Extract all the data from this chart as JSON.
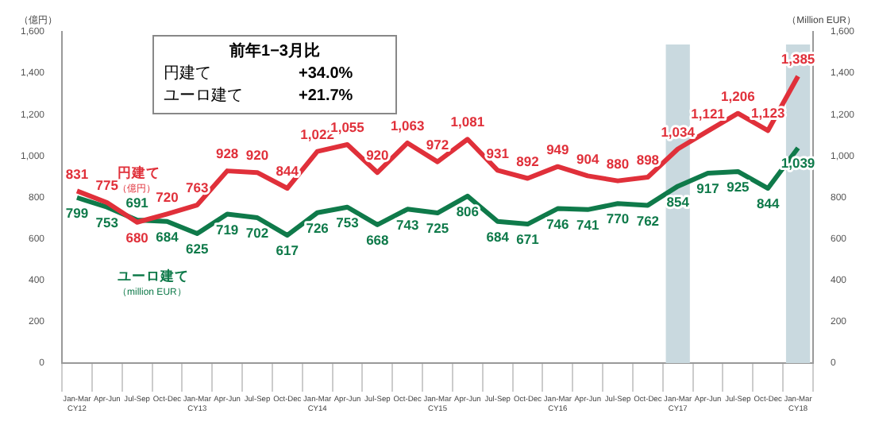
{
  "chart_data": {
    "type": "line",
    "ylabel": "（億円）",
    "y2label": "（Million EUR）",
    "categories": [
      "Jan-Mar\nCY12",
      "Apr-Jun",
      "Jul-Sep",
      "Oct-Dec",
      "Jan-Mar\nCY13",
      "Apr-Jun",
      "Jul-Sep",
      "Oct-Dec",
      "Jan-Mar\nCY14",
      "Apr-Jun",
      "Jul-Sep",
      "Oct-Dec",
      "Jan-Mar\nCY15",
      "Apr-Jun",
      "Jul-Sep",
      "Oct-Dec",
      "Jan-Mar\nCY16",
      "Apr-Jun",
      "Jul-Sep",
      "Oct-Dec",
      "Jan-Mar\nCY17",
      "Apr-Jun",
      "Jul-Sep",
      "Oct-Dec",
      "Jan-Mar\nCY18"
    ],
    "series": [
      {
        "name": "円建て（億円）",
        "color": "#e0303a",
        "values": [
          831,
          775,
          680,
          720,
          763,
          928,
          920,
          844,
          1022,
          1055,
          920,
          1063,
          972,
          1081,
          931,
          892,
          949,
          904,
          880,
          898,
          1034,
          1121,
          1206,
          1123,
          1385
        ],
        "value_labels": [
          "831",
          "775",
          "680",
          "720",
          "763",
          "928",
          "920",
          "844",
          "1,022",
          "1,055",
          "920",
          "1,063",
          "972",
          "1,081",
          "931",
          "892",
          "949",
          "904",
          "880",
          "898",
          "1,034",
          "1,121",
          "1,206",
          "1,123",
          "1,385"
        ]
      },
      {
        "name": "ユーロ建て（million EUR）",
        "color": "#0f7a4a",
        "axis": "y2",
        "values": [
          799,
          753,
          691,
          684,
          625,
          719,
          702,
          617,
          726,
          753,
          668,
          743,
          725,
          806,
          684,
          671,
          746,
          741,
          770,
          762,
          854,
          917,
          925,
          844,
          1039
        ],
        "value_labels": [
          "799",
          "753",
          "691",
          "684",
          "625",
          "719",
          "702",
          "617",
          "726",
          "753",
          "668",
          "743",
          "725",
          "806",
          "684",
          "671",
          "746",
          "741",
          "770",
          "762",
          "854",
          "917",
          "925",
          "844",
          "1,039"
        ]
      }
    ],
    "ylim": [
      0,
      1600
    ],
    "yticks": [
      {
        "value": 0,
        "label": "0"
      },
      {
        "value": 200,
        "label": "200"
      },
      {
        "value": 400,
        "label": "400"
      },
      {
        "value": 600,
        "label": "600"
      },
      {
        "value": 800,
        "label": "800"
      },
      {
        "value": 1000,
        "label": "1,000"
      },
      {
        "value": 1200,
        "label": "1,200"
      },
      {
        "value": 1400,
        "label": "1,400"
      },
      {
        "value": 1600,
        "label": "1,600"
      }
    ],
    "y2lim": [
      0,
      1600
    ],
    "y2ticks": [
      {
        "value": 0,
        "label": "0"
      },
      {
        "value": 200,
        "label": "200"
      },
      {
        "value": 400,
        "label": "400"
      },
      {
        "value": 600,
        "label": "600"
      },
      {
        "value": 800,
        "label": "800"
      },
      {
        "value": 1000,
        "label": "1,000"
      },
      {
        "value": 1200,
        "label": "1,200"
      },
      {
        "value": 1400,
        "label": "1,400"
      },
      {
        "value": 1600,
        "label": "1,600"
      }
    ],
    "bands": [
      {
        "axis": "x",
        "from": "Jan-Mar\nCY17",
        "to": "Jan-Mar\nCY17",
        "color": "#c9d9df"
      },
      {
        "axis": "x",
        "from": "Jan-Mar\nCY18",
        "to": "Jan-Mar\nCY18",
        "color": "#c9d9df"
      }
    ],
    "annotations": [
      "前年1−3月比",
      "円建て +34.0%",
      "ユーロ建て +21.7%"
    ],
    "grid": false,
    "legend": false,
    "marker": "none",
    "line_style": "solid"
  }
}
